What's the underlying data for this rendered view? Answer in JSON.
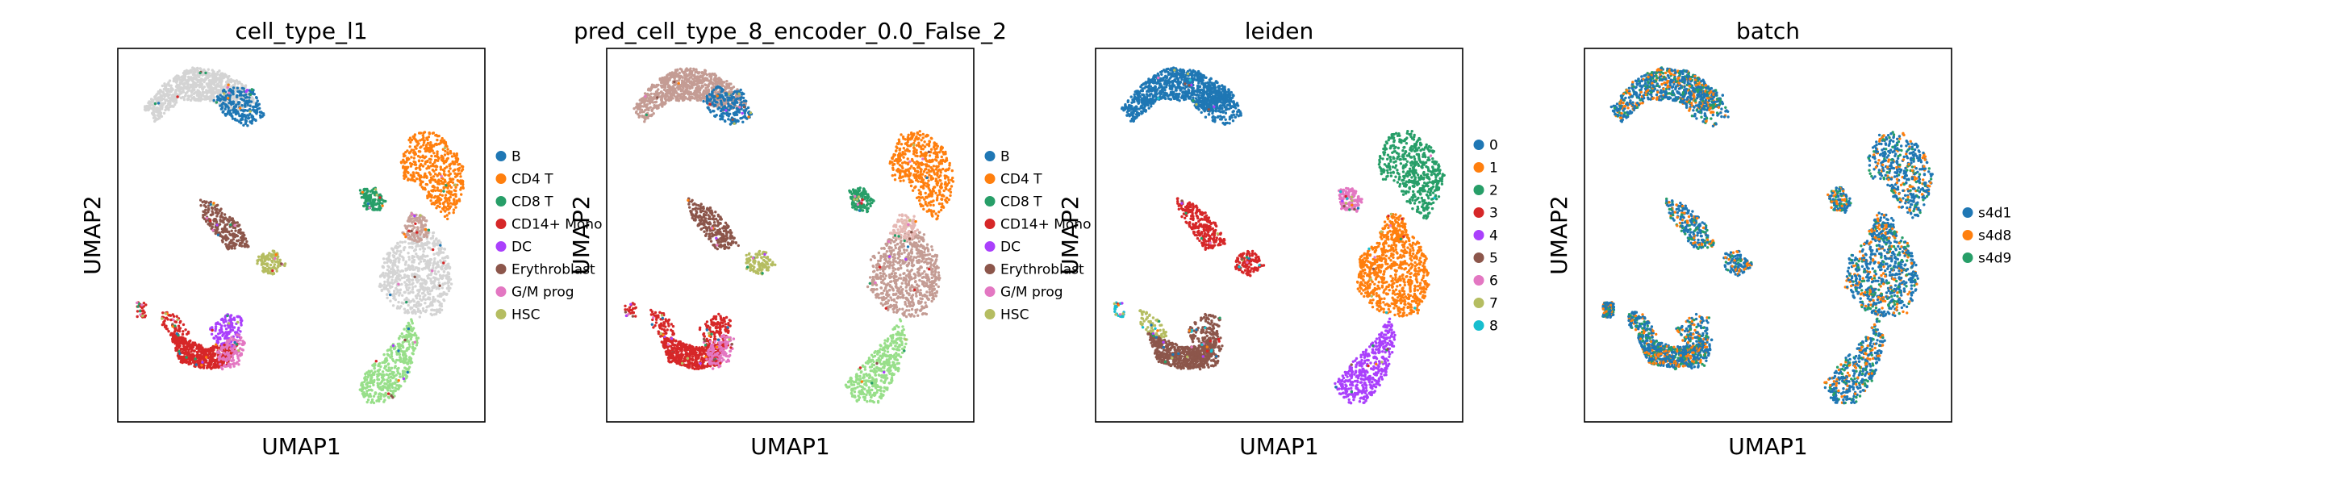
{
  "chart_data": [
    {
      "type": "scatter",
      "title": "cell_type_l1",
      "xlabel": "UMAP1",
      "ylabel": "UMAP2",
      "grid": false,
      "legend_position": "right",
      "legend": [
        "B",
        "CD4 T",
        "CD8 T",
        "CD14+ Mono",
        "DC",
        "Erythroblast",
        "G/M prog",
        "HSC"
      ],
      "colors": [
        "#1f77b4",
        "#ff7f0e",
        "#279e68",
        "#d62728",
        "#aa40fc",
        "#8c564b",
        "#e377c2",
        "#b5bd61"
      ]
    },
    {
      "type": "scatter",
      "title": "pred_cell_type_8_encoder_0.0_False_2",
      "xlabel": "UMAP1",
      "ylabel": "UMAP2",
      "grid": false,
      "legend_position": "right",
      "legend": [
        "B",
        "CD4 T",
        "CD8 T",
        "CD14+ Mono",
        "DC",
        "Erythroblast",
        "G/M prog",
        "HSC"
      ],
      "colors": [
        "#1f77b4",
        "#ff7f0e",
        "#279e68",
        "#d62728",
        "#aa40fc",
        "#8c564b",
        "#e377c2",
        "#b5bd61"
      ]
    },
    {
      "type": "scatter",
      "title": "leiden",
      "xlabel": "UMAP1",
      "ylabel": "UMAP2",
      "grid": false,
      "legend_position": "right",
      "legend": [
        "0",
        "1",
        "2",
        "3",
        "4",
        "5",
        "6",
        "7",
        "8"
      ],
      "colors": [
        "#1f77b4",
        "#ff7f0e",
        "#279e68",
        "#d62728",
        "#aa40fc",
        "#8c564b",
        "#e377c2",
        "#b5bd61",
        "#17becf"
      ]
    },
    {
      "type": "scatter",
      "title": "batch",
      "xlabel": "UMAP1",
      "ylabel": "UMAP2",
      "grid": false,
      "legend_position": "right",
      "legend": [
        "s4d1",
        "s4d8",
        "s4d9"
      ],
      "colors": [
        "#1f77b4",
        "#ff7f0e",
        "#279e68"
      ]
    }
  ]
}
